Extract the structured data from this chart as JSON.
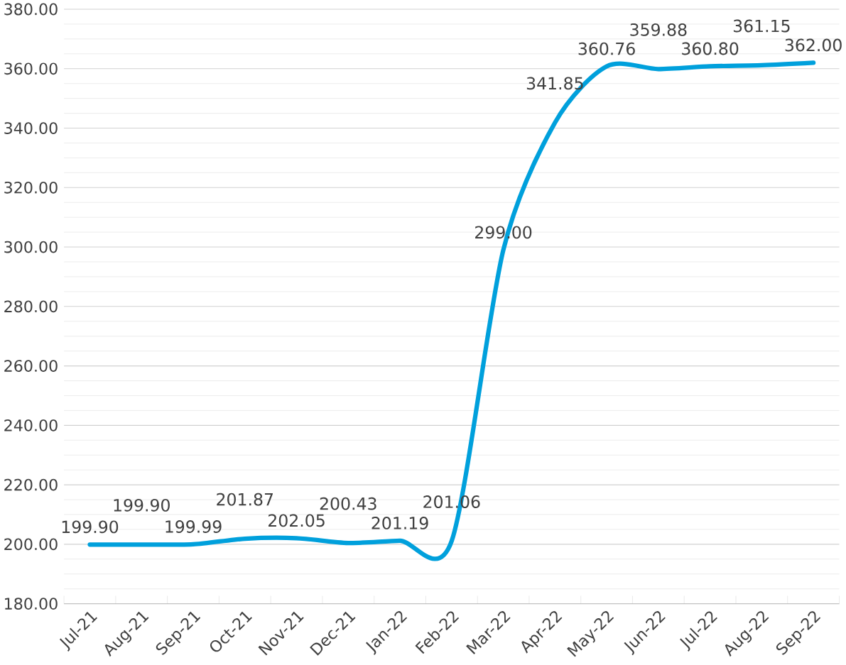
{
  "chart_data": {
    "type": "line",
    "categories": [
      "Jul-21",
      "Aug-21",
      "Sep-21",
      "Oct-21",
      "Nov-21",
      "Dec-21",
      "Jan-22",
      "Feb-22",
      "Mar-22",
      "Apr-22",
      "May-22",
      "Jun-22",
      "Jul-22",
      "Aug-22",
      "Sep-22"
    ],
    "series": [
      {
        "color": "#00a0dc",
        "values": [
          199.9,
          199.9,
          199.99,
          201.87,
          202.05,
          200.43,
          201.19,
          201.06,
          299.0,
          341.85,
          360.76,
          359.88,
          360.8,
          361.15,
          362.0
        ],
        "value_labels": [
          "199.90",
          "199.90",
          "199.99",
          "201.87",
          "202.05",
          "200.43",
          "201.19",
          "201.06",
          "299.00",
          "341.85",
          "360.76",
          "359.88",
          "360.80",
          "361.15",
          "362.00"
        ]
      }
    ],
    "ylim": [
      180,
      380
    ],
    "yticks": [
      {
        "value": 180,
        "label": "180.00"
      },
      {
        "value": 200,
        "label": "200.00"
      },
      {
        "value": 220,
        "label": "220.00"
      },
      {
        "value": 240,
        "label": "240.00"
      },
      {
        "value": 260,
        "label": "260.00"
      },
      {
        "value": 280,
        "label": "280.00"
      },
      {
        "value": 300,
        "label": "300.00"
      },
      {
        "value": 320,
        "label": "320.00"
      },
      {
        "value": 340,
        "label": "340.00"
      },
      {
        "value": 360,
        "label": "360.00"
      },
      {
        "value": 380,
        "label": "380.00"
      }
    ],
    "grid": "y",
    "line_style": "solid"
  }
}
